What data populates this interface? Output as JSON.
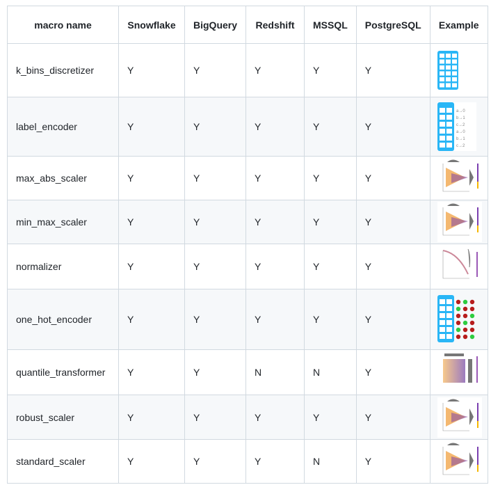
{
  "table": {
    "headers": [
      "macro name",
      "Snowflake",
      "BigQuery",
      "Redshift",
      "MSSQL",
      "PostgreSQL",
      "Example"
    ],
    "rows": [
      {
        "name": "k_bins_discretizer",
        "snowflake": "Y",
        "bigquery": "Y",
        "redshift": "Y",
        "mssql": "Y",
        "postgresql": "Y",
        "example": "grid-numbers-image"
      },
      {
        "name": "label_encoder",
        "snowflake": "Y",
        "bigquery": "Y",
        "redshift": "Y",
        "mssql": "Y",
        "postgresql": "Y",
        "example": "grid-labels-image"
      },
      {
        "name": "max_abs_scaler",
        "snowflake": "Y",
        "bigquery": "Y",
        "redshift": "Y",
        "mssql": "Y",
        "postgresql": "Y",
        "example": "scatter-plot-image"
      },
      {
        "name": "min_max_scaler",
        "snowflake": "Y",
        "bigquery": "Y",
        "redshift": "Y",
        "mssql": "Y",
        "postgresql": "Y",
        "example": "scatter-plot-image"
      },
      {
        "name": "normalizer",
        "snowflake": "Y",
        "bigquery": "Y",
        "redshift": "Y",
        "mssql": "Y",
        "postgresql": "Y",
        "example": "curve-plot-image"
      },
      {
        "name": "one_hot_encoder",
        "snowflake": "Y",
        "bigquery": "Y",
        "redshift": "Y",
        "mssql": "Y",
        "postgresql": "Y",
        "example": "one-hot-image"
      },
      {
        "name": "quantile_transformer",
        "snowflake": "Y",
        "bigquery": "Y",
        "redshift": "N",
        "mssql": "N",
        "postgresql": "Y",
        "example": "quantile-plot-image"
      },
      {
        "name": "robust_scaler",
        "snowflake": "Y",
        "bigquery": "Y",
        "redshift": "Y",
        "mssql": "Y",
        "postgresql": "Y",
        "example": "scatter-plot-image"
      },
      {
        "name": "standard_scaler",
        "snowflake": "Y",
        "bigquery": "Y",
        "redshift": "Y",
        "mssql": "N",
        "postgresql": "Y",
        "example": "scatter-plot-image"
      }
    ],
    "label_encoder_labels": [
      "a→0",
      "b→1",
      "c→2",
      "a→0",
      "b→1",
      "c→2"
    ],
    "colors": {
      "grid": "#29b6f6",
      "dot_red": "#b71c1c",
      "dot_green": "#2ecc40",
      "border": "#d1d9e0",
      "stripe": "#f6f8fa"
    }
  }
}
